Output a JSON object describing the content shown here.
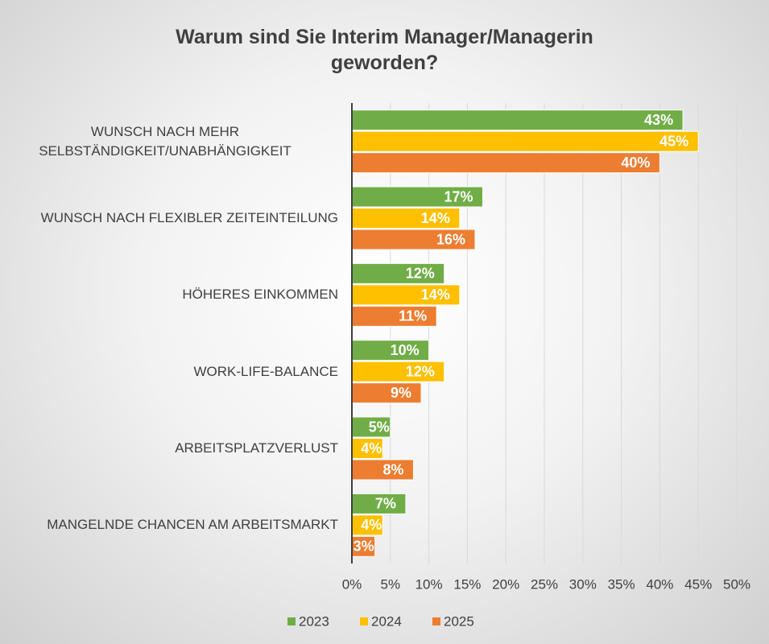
{
  "chart_data": {
    "type": "bar",
    "orientation": "horizontal",
    "title": "Warum sind Sie Interim Manager/Managerin geworden?",
    "categories": [
      "WUNSCH NACH MEHR SELBSTÄNDIGKEIT/UNABHÄNGIGKEIT",
      "WUNSCH NACH FLEXIBLER ZEITEINTEILUNG",
      "HÖHERES EINKOMMEN",
      "WORK-LIFE-BALANCE",
      "ARBEITSPLATZVERLUST",
      "MANGELNDE CHANCEN AM ARBEITSMARKT"
    ],
    "series": [
      {
        "name": "2023",
        "color": "#70ad47",
        "values": [
          43,
          17,
          12,
          10,
          5,
          7
        ],
        "value_labels": [
          "43%",
          "17%",
          "12%",
          "10%",
          "5%",
          "7%"
        ]
      },
      {
        "name": "2024",
        "color": "#ffc000",
        "values": [
          45,
          14,
          14,
          12,
          4,
          4
        ],
        "value_labels": [
          "45%",
          "14%",
          "14%",
          "12%",
          "4%",
          "4%"
        ]
      },
      {
        "name": "2025",
        "color": "#ed7d31",
        "values": [
          40,
          16,
          11,
          9,
          8,
          3
        ],
        "value_labels": [
          "40%",
          "16%",
          "11%",
          "9%",
          "8%",
          "3%"
        ]
      }
    ],
    "xlim": [
      0,
      50
    ],
    "xticks": [
      {
        "value": 0,
        "label": "0%"
      },
      {
        "value": 5,
        "label": "5%"
      },
      {
        "value": 10,
        "label": "10%"
      },
      {
        "value": 15,
        "label": "15%"
      },
      {
        "value": 20,
        "label": "20%"
      },
      {
        "value": 25,
        "label": "25%"
      },
      {
        "value": 30,
        "label": "30%"
      },
      {
        "value": 35,
        "label": "35%"
      },
      {
        "value": 40,
        "label": "40%"
      },
      {
        "value": 45,
        "label": "45%"
      },
      {
        "value": 50,
        "label": "50%"
      }
    ],
    "grid": true,
    "legend": "bottom"
  }
}
